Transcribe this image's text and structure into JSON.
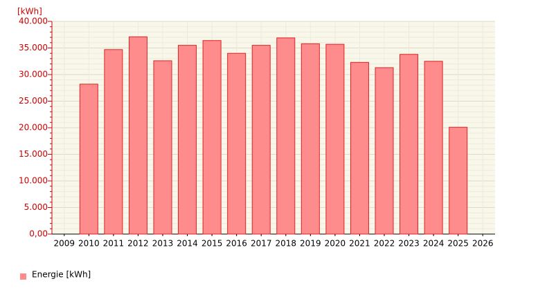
{
  "chart_data": {
    "type": "bar",
    "y_axis_label": "[kWh]",
    "categories": [
      "2009",
      "2010",
      "2011",
      "2012",
      "2013",
      "2014",
      "2015",
      "2016",
      "2017",
      "2018",
      "2019",
      "2020",
      "2021",
      "2022",
      "2023",
      "2024",
      "2025",
      "2026"
    ],
    "series": [
      {
        "name": "Energie [kWh]",
        "color": "#ff8c8c",
        "values": [
          null,
          28200,
          34700,
          37100,
          32600,
          35500,
          36400,
          34000,
          35500,
          36900,
          35800,
          35700,
          32300,
          31300,
          33800,
          32500,
          20100,
          null
        ]
      }
    ],
    "ylim": [
      0,
      40000
    ],
    "yticks": [
      {
        "value": 0,
        "label": "0,00"
      },
      {
        "value": 5000,
        "label": "5.000"
      },
      {
        "value": 10000,
        "label": "10.000"
      },
      {
        "value": 15000,
        "label": "15.000"
      },
      {
        "value": 20000,
        "label": "20.000"
      },
      {
        "value": 25000,
        "label": "25.000"
      },
      {
        "value": 30000,
        "label": "30.000"
      },
      {
        "value": 35000,
        "label": "35.000"
      },
      {
        "value": 40000,
        "label": "40.000"
      }
    ],
    "grid": true
  }
}
